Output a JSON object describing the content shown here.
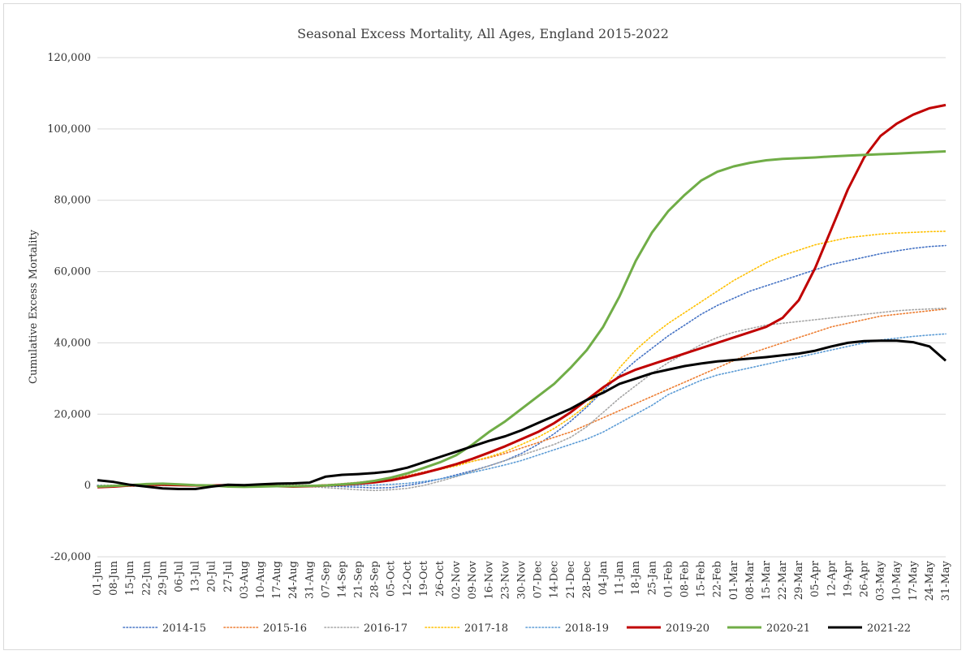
{
  "chart_data": {
    "type": "line",
    "title": "Seasonal Excess Mortality, All Ages, England 2015-2022",
    "ylabel": "Cumulative Excess Mortality",
    "xlabel": "",
    "ylim": [
      -20000,
      120000
    ],
    "yticks": [
      -20000,
      0,
      20000,
      40000,
      60000,
      80000,
      100000,
      120000
    ],
    "ytick_labels": [
      "-20,000",
      "0",
      "20,000",
      "40,000",
      "60,000",
      "80,000",
      "100,000",
      "120,000"
    ],
    "grid": "horizontal",
    "legend_position": "bottom",
    "categories": [
      "01-Jun",
      "08-Jun",
      "15-Jun",
      "22-Jun",
      "29-Jun",
      "06-Jul",
      "13-Jul",
      "20-Jul",
      "27-Jul",
      "03-Aug",
      "10-Aug",
      "17-Aug",
      "24-Aug",
      "31-Aug",
      "07-Sep",
      "14-Sep",
      "21-Sep",
      "28-Sep",
      "05-Oct",
      "12-Oct",
      "19-Oct",
      "26-Oct",
      "02-Nov",
      "09-Nov",
      "16-Nov",
      "23-Nov",
      "30-Nov",
      "07-Dec",
      "14-Dec",
      "21-Dec",
      "28-Dec",
      "04-Jan",
      "11-Jan",
      "18-Jan",
      "25-Jan",
      "01-Feb",
      "08-Feb",
      "15-Feb",
      "22-Feb",
      "01-Mar",
      "08-Mar",
      "15-Mar",
      "22-Mar",
      "29-Mar",
      "05-Apr",
      "12-Apr",
      "19-Apr",
      "26-Apr",
      "03-May",
      "10-May",
      "17-May",
      "24-May",
      "31-May"
    ],
    "series": [
      {
        "name": "2014-15",
        "color": "#4472C4",
        "style": "dotted",
        "values": [
          0,
          0,
          0,
          0,
          0,
          0,
          0,
          0,
          0,
          0,
          0,
          0,
          0,
          0,
          -200,
          -300,
          -500,
          -700,
          -600,
          0,
          800,
          1800,
          3000,
          4200,
          5500,
          7000,
          9000,
          11500,
          14500,
          18000,
          22000,
          26500,
          31000,
          35000,
          38500,
          42000,
          45000,
          48000,
          50500,
          52500,
          54500,
          56000,
          57500,
          59000,
          60500,
          62000,
          63000,
          64000,
          65000,
          65800,
          66500,
          67000,
          67300
        ]
      },
      {
        "name": "2015-16",
        "color": "#ED7D31",
        "style": "dotted",
        "values": [
          -300,
          -300,
          -200,
          -100,
          0,
          0,
          0,
          0,
          0,
          0,
          0,
          0,
          0,
          0,
          200,
          500,
          900,
          1400,
          2000,
          2800,
          3800,
          4800,
          5800,
          6800,
          7800,
          9000,
          10500,
          12000,
          13500,
          15000,
          17000,
          19000,
          21000,
          23000,
          25000,
          27000,
          29000,
          31000,
          33000,
          35000,
          37000,
          38500,
          40000,
          41500,
          43000,
          44500,
          45500,
          46500,
          47500,
          48000,
          48500,
          49000,
          49500
        ]
      },
      {
        "name": "2016-17",
        "color": "#A5A5A5",
        "style": "dotted",
        "values": [
          0,
          0,
          0,
          0,
          0,
          0,
          0,
          0,
          0,
          0,
          0,
          0,
          0,
          -300,
          -600,
          -900,
          -1200,
          -1400,
          -1200,
          -800,
          0,
          1200,
          2500,
          4000,
          5500,
          7000,
          8500,
          10000,
          11500,
          13500,
          16500,
          20500,
          24500,
          28000,
          31500,
          34500,
          37000,
          39500,
          41500,
          43000,
          44000,
          45000,
          45500,
          46000,
          46500,
          47000,
          47500,
          48000,
          48500,
          49000,
          49300,
          49500,
          49700
        ]
      },
      {
        "name": "2017-18",
        "color": "#FFC000",
        "style": "dotted",
        "values": [
          0,
          0,
          0,
          0,
          0,
          0,
          0,
          0,
          0,
          0,
          0,
          0,
          0,
          0,
          200,
          400,
          700,
          1100,
          1700,
          2500,
          3500,
          4500,
          5500,
          6800,
          8000,
          9500,
          11500,
          13500,
          16000,
          19000,
          22500,
          27000,
          33000,
          38000,
          42000,
          45500,
          48500,
          51500,
          54500,
          57500,
          60000,
          62500,
          64500,
          66000,
          67500,
          68500,
          69500,
          70000,
          70500,
          70800,
          71000,
          71200,
          71300
        ]
      },
      {
        "name": "2018-19",
        "color": "#5B9BD5",
        "style": "dotted",
        "values": [
          0,
          0,
          0,
          0,
          0,
          0,
          0,
          0,
          0,
          0,
          0,
          0,
          0,
          0,
          0,
          0,
          0,
          100,
          300,
          600,
          1100,
          1800,
          2700,
          3700,
          4700,
          5800,
          7000,
          8500,
          10000,
          11500,
          13000,
          15000,
          17500,
          20000,
          22500,
          25500,
          27500,
          29500,
          31000,
          32000,
          33000,
          34000,
          35000,
          36000,
          37000,
          38000,
          39000,
          40000,
          40800,
          41300,
          41800,
          42200,
          42500
        ]
      },
      {
        "name": "2019-20",
        "color": "#C00000",
        "style": "solid",
        "values": [
          -500,
          -300,
          0,
          200,
          200,
          100,
          0,
          0,
          100,
          0,
          0,
          -200,
          -300,
          -200,
          0,
          200,
          500,
          900,
          1500,
          2400,
          3500,
          4700,
          6000,
          7500,
          9200,
          11000,
          13000,
          15000,
          17500,
          20500,
          24000,
          27500,
          30500,
          32500,
          34000,
          35500,
          37000,
          38500,
          40000,
          41500,
          43000,
          44500,
          47000,
          52000,
          61000,
          72000,
          83000,
          92000,
          98000,
          101500,
          104000,
          105800,
          106700
        ]
      },
      {
        "name": "2020-21",
        "color": "#70AD47",
        "style": "solid",
        "values": [
          -300,
          -100,
          100,
          400,
          500,
          300,
          100,
          0,
          -300,
          -400,
          -300,
          -200,
          -200,
          -100,
          0,
          300,
          700,
          1300,
          2200,
          3400,
          4900,
          6500,
          8500,
          11500,
          15000,
          18000,
          21500,
          25000,
          28500,
          33000,
          38000,
          44500,
          53000,
          63000,
          71000,
          77000,
          81500,
          85500,
          88000,
          89500,
          90500,
          91200,
          91600,
          91800,
          92000,
          92300,
          92500,
          92700,
          92900,
          93100,
          93300,
          93500,
          93700
        ]
      },
      {
        "name": "2021-22",
        "color": "#000000",
        "style": "solid",
        "values": [
          1500,
          1000,
          200,
          -300,
          -800,
          -1000,
          -1000,
          -300,
          200,
          100,
          300,
          500,
          600,
          800,
          2500,
          3000,
          3200,
          3500,
          4000,
          5000,
          6500,
          8000,
          9500,
          11000,
          12500,
          13800,
          15500,
          17500,
          19500,
          21500,
          24000,
          26000,
          28500,
          30000,
          31500,
          32500,
          33500,
          34200,
          34800,
          35200,
          35600,
          36000,
          36500,
          37000,
          37800,
          39000,
          40000,
          40500,
          40600,
          40600,
          40200,
          39000,
          35000
        ]
      }
    ]
  }
}
